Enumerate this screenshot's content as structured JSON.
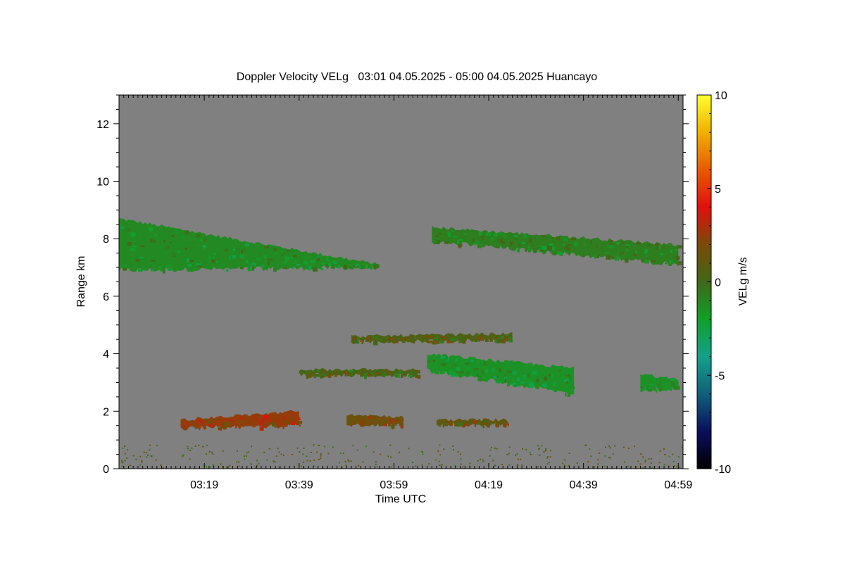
{
  "chart_data": {
    "type": "heatmap",
    "title": "Doppler Velocity VELg   03:01 04.05.2025 - 05:00 04.05.2025 Huancayo",
    "xlabel": "Time UTC",
    "ylabel": "Range km",
    "x_tick_labels": [
      "03:19",
      "03:39",
      "03:59",
      "04:19",
      "04:39",
      "04:59"
    ],
    "x_ticks_min": [
      19,
      39,
      59,
      79,
      99,
      119
    ],
    "xlim_min": [
      1,
      120
    ],
    "y_ticks": [
      0,
      2,
      4,
      6,
      8,
      10,
      12
    ],
    "ylim": [
      0,
      13
    ],
    "colorbar": {
      "label": "VELg m/s",
      "ticks": [
        10,
        5,
        0,
        -5,
        -10
      ],
      "range": [
        -10,
        10
      ],
      "colors": [
        "#000000",
        "#0a0f5c",
        "#10607a",
        "#14a08a",
        "#10a02a",
        "#406818",
        "#7a4a08",
        "#e01010",
        "#e85a00",
        "#f0b000",
        "#ffff30"
      ]
    },
    "background_color": "#808080",
    "echo_layers": [
      {
        "name": "upper-cloud-1",
        "t_start": 1,
        "t_end": 56,
        "base_start": 6.9,
        "base_end": 7.0,
        "top_start": 8.7,
        "top_end": 7.1,
        "velocity": -1.2
      },
      {
        "name": "upper-cloud-2",
        "t_start": 67,
        "t_end": 119,
        "base_start": 7.9,
        "base_end": 7.1,
        "top_start": 8.4,
        "top_end": 7.8,
        "velocity": -0.8
      },
      {
        "name": "mid-layer-4.5km",
        "t_start": 50,
        "t_end": 84,
        "base_start": 4.4,
        "base_end": 4.5,
        "top_start": 4.6,
        "top_end": 4.7,
        "velocity": 0.5
      },
      {
        "name": "mid-cloud-3km",
        "t_start": 66,
        "t_end": 97,
        "base_start": 3.4,
        "base_end": 2.6,
        "top_start": 4.0,
        "top_end": 3.5,
        "velocity": -1.5
      },
      {
        "name": "mid-layer-3.3km",
        "t_start": 39,
        "t_end": 64,
        "base_start": 3.25,
        "base_end": 3.25,
        "top_start": 3.45,
        "top_end": 3.45,
        "velocity": 0.3
      },
      {
        "name": "mid-cloud-right",
        "t_start": 111,
        "t_end": 119,
        "base_start": 2.7,
        "base_end": 2.8,
        "top_start": 3.3,
        "top_end": 3.1,
        "velocity": -1.5
      },
      {
        "name": "low-layer-1.7km",
        "t_start": 14,
        "t_end": 39,
        "base_start": 1.4,
        "base_end": 1.5,
        "top_start": 1.7,
        "top_end": 2.0,
        "velocity": 2.5
      },
      {
        "name": "low-layer-1.7km-b",
        "t_start": 49,
        "t_end": 61,
        "base_start": 1.5,
        "base_end": 1.5,
        "top_start": 1.9,
        "top_end": 1.8,
        "velocity": 1.5
      },
      {
        "name": "low-layer-1.7km-c",
        "t_start": 68,
        "t_end": 83,
        "base_start": 1.55,
        "base_end": 1.55,
        "top_start": 1.7,
        "top_end": 1.7,
        "velocity": 1.2
      }
    ]
  }
}
